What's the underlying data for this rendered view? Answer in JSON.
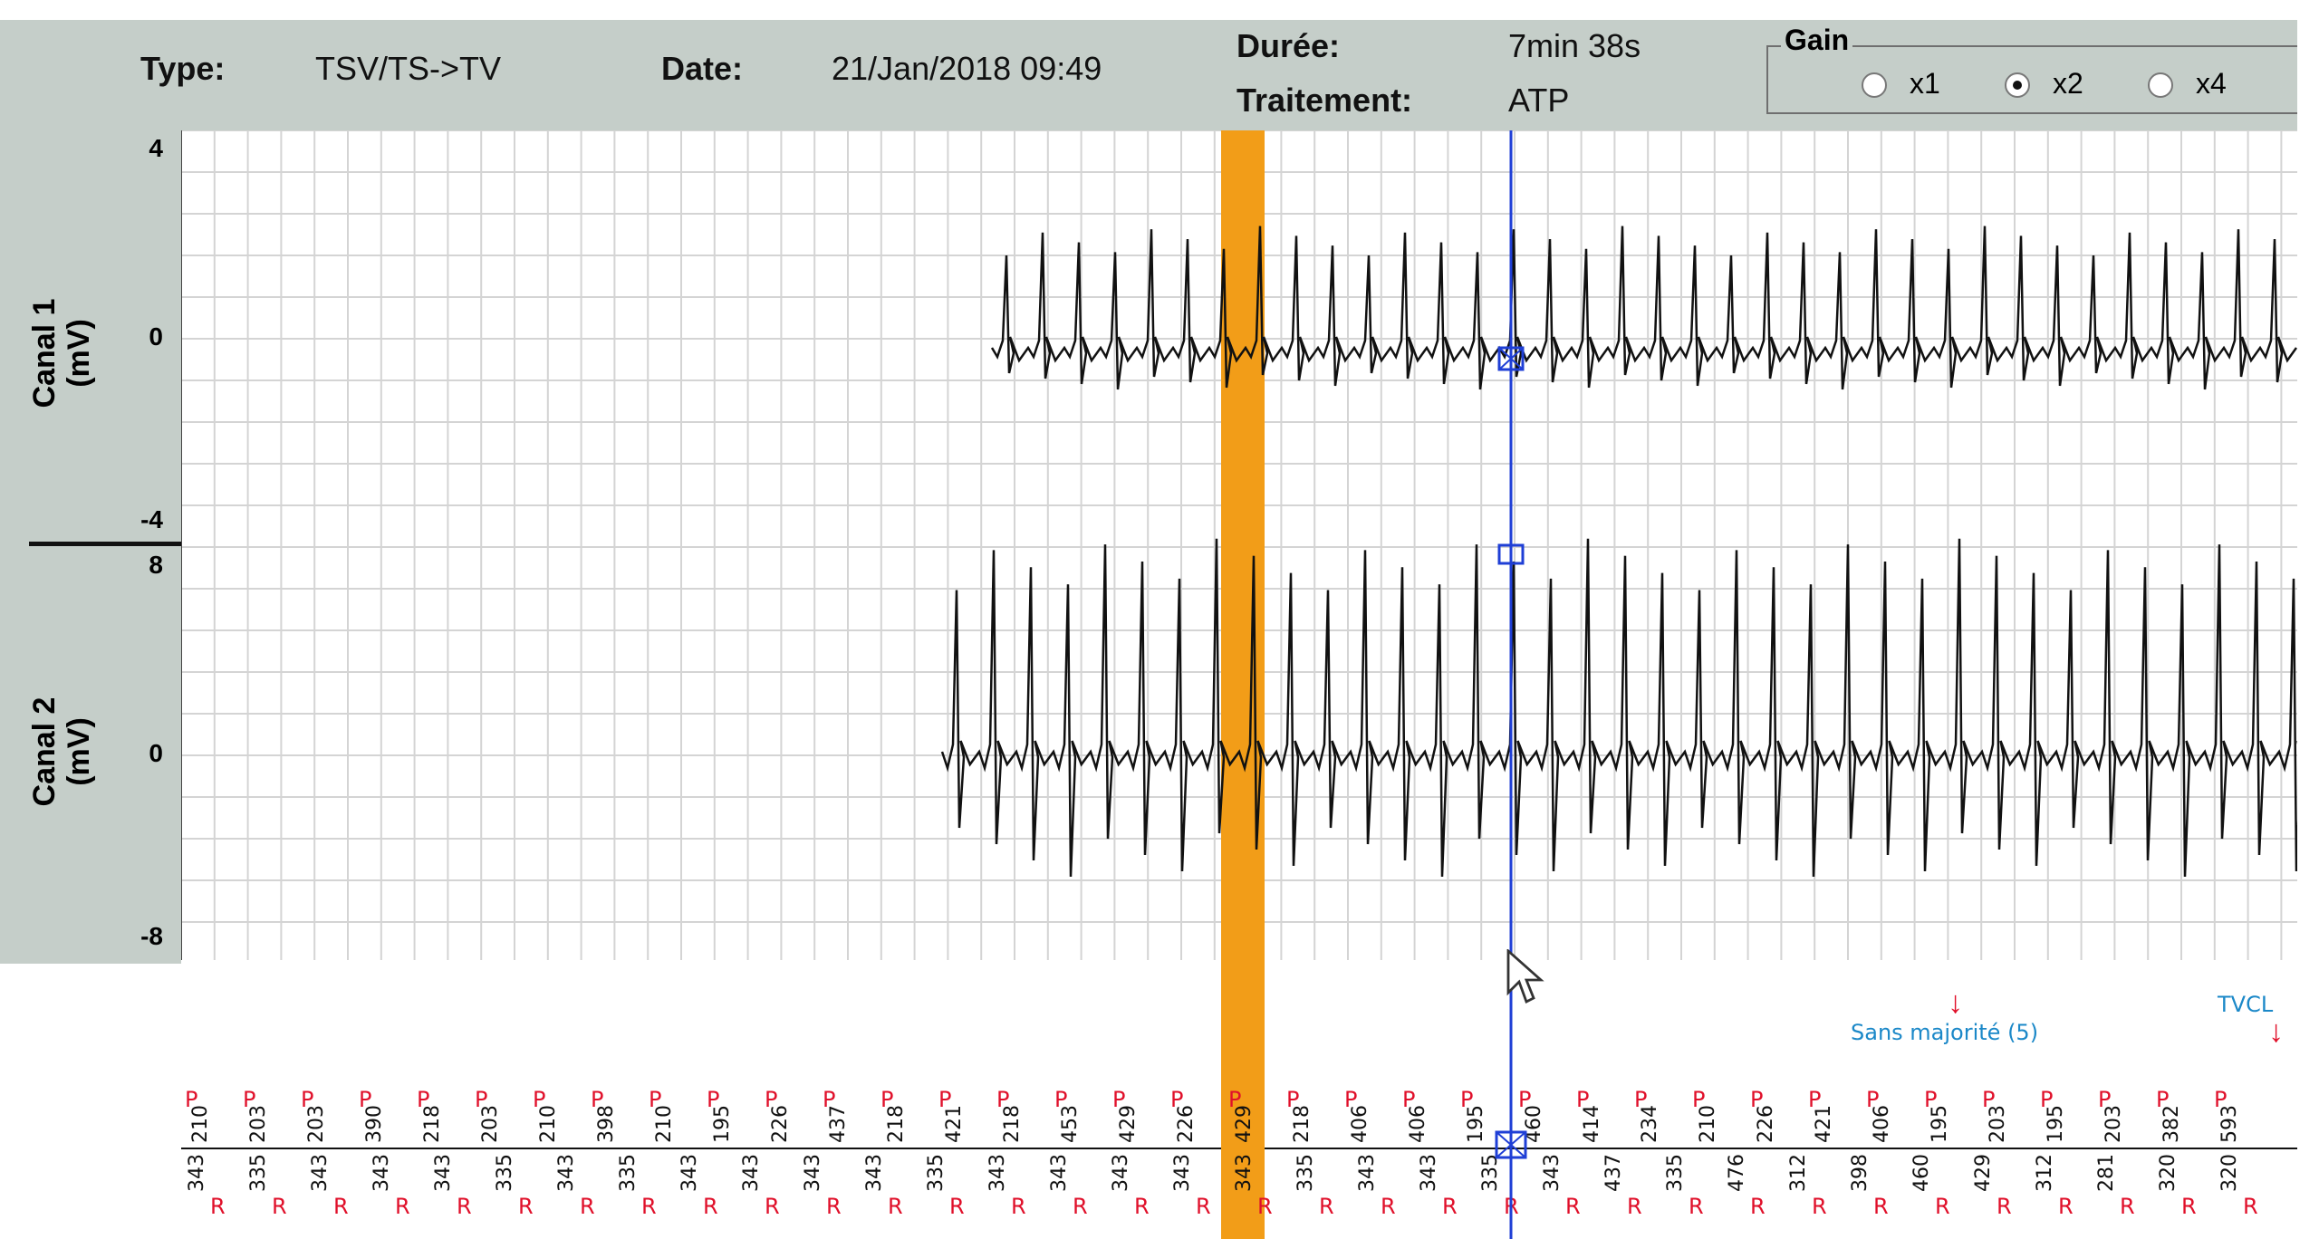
{
  "header": {
    "type_label": "Type:",
    "type_value": "TSV/TS->TV",
    "date_label": "Date:",
    "date_value": "21/Jan/2018 09:49",
    "duration_label": "Durée:",
    "duration_value": "7min 38s",
    "treatment_label": "Traitement:",
    "treatment_value": "ATP"
  },
  "gain": {
    "title": "Gain",
    "options": [
      {
        "label": "x1",
        "selected": false
      },
      {
        "label": "x2",
        "selected": true
      },
      {
        "label": "x4",
        "selected": false
      }
    ]
  },
  "channels": [
    {
      "name": "Canal 1",
      "unit": "(mV)",
      "ticks": [
        "4",
        "0",
        "-4"
      ]
    },
    {
      "name": "Canal 2",
      "unit": "(mV)",
      "ticks": [
        "8",
        "0",
        "-8"
      ]
    }
  ],
  "annotations": {
    "sans_majorite": "Sans majorité (5)",
    "tvcl": "TVCL"
  },
  "intervals": {
    "pp_top": [
      "210",
      "203",
      "203",
      "390",
      "218",
      "203",
      "210",
      "398",
      "210",
      "195",
      "226",
      "437",
      "218",
      "421",
      "218",
      "453",
      "429",
      "226",
      "429",
      "218",
      "406",
      "406",
      "195",
      "460",
      "414",
      "234",
      "210",
      "226",
      "421",
      "406",
      "195",
      "203",
      "195",
      "203",
      "382",
      "593"
    ],
    "rr_bottom": [
      "343",
      "335",
      "343",
      "343",
      "343",
      "335",
      "343",
      "335",
      "343",
      "343",
      "343",
      "343",
      "335",
      "343",
      "343",
      "343",
      "343",
      "343",
      "335",
      "343",
      "343",
      "335",
      "343",
      "437",
      "335",
      "476",
      "312",
      "398",
      "460",
      "429",
      "312",
      "281",
      "320",
      "320"
    ]
  },
  "colors": {
    "panel": "#c5cec9",
    "grid": "#d4d4d4",
    "trace": "#111111",
    "highlight": "#f29d18",
    "cursor_line": "#1f3fd6",
    "marker": "#e0102a",
    "annotation": "#1b88c8"
  }
}
